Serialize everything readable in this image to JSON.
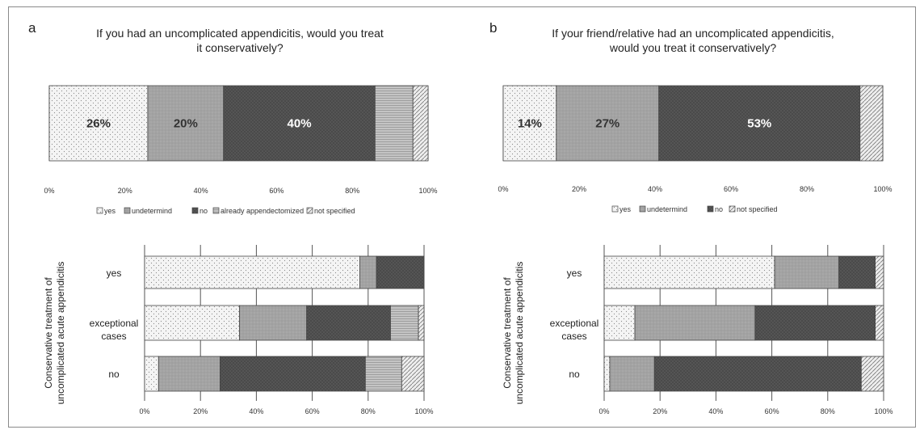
{
  "colors": {
    "yes_fill": "#f2f2f2",
    "undetermined_fill": "#a3a3a3",
    "no_fill": "#555555",
    "appendectomized_fill": "#bdbdbd",
    "not_specified_fill": "#e5e5e5",
    "border": "#444444",
    "frame": "#8a8a8a"
  },
  "chart_data": [
    {
      "panel": "a",
      "type": "bar",
      "orientation": "horizontal",
      "stacked": true,
      "title_lines": [
        "If you had an uncomplicated appendicitis, would you treat",
        "it conservatively?"
      ],
      "xlim": [
        0,
        100
      ],
      "x_ticks": [
        "0%",
        "20%",
        "40%",
        "60%",
        "80%",
        "100%"
      ],
      "legend_position": "bottom",
      "grid": true,
      "series": [
        {
          "name": "yes",
          "key": "yes",
          "values": [
            26
          ],
          "label": "26%"
        },
        {
          "name": "undetermind",
          "key": "undetermined",
          "values": [
            20
          ],
          "label": "20%"
        },
        {
          "name": "no",
          "key": "no",
          "values": [
            40
          ],
          "label": "40%"
        },
        {
          "name": "already appendectomized",
          "key": "appendectomized",
          "values": [
            10
          ],
          "label": ""
        },
        {
          "name": "not specified",
          "key": "not_specified",
          "values": [
            4
          ],
          "label": ""
        }
      ]
    },
    {
      "panel": "b",
      "type": "bar",
      "orientation": "horizontal",
      "stacked": true,
      "title_lines": [
        "If your friend/relative had an uncomplicated appendicitis,",
        "would you treat it conservatively?"
      ],
      "xlim": [
        0,
        100
      ],
      "x_ticks": [
        "0%",
        "20%",
        "40%",
        "60%",
        "80%",
        "100%"
      ],
      "legend_position": "bottom",
      "grid": true,
      "series": [
        {
          "name": "yes",
          "key": "yes",
          "values": [
            14
          ],
          "label": "14%"
        },
        {
          "name": "undetermind",
          "key": "undetermined",
          "values": [
            27
          ],
          "label": "27%"
        },
        {
          "name": "no",
          "key": "no",
          "values": [
            53
          ],
          "label": "53%"
        },
        {
          "name": "not specified",
          "key": "not_specified",
          "values": [
            6
          ],
          "label": ""
        }
      ]
    },
    {
      "panel": "a-bottom",
      "type": "bar",
      "orientation": "horizontal",
      "stacked": true,
      "ylabel_lines": [
        "Conservative treatment of",
        "uncomplicated acute appendicitis"
      ],
      "categories": [
        [
          "yes"
        ],
        [
          "exceptional",
          "cases"
        ],
        [
          "no"
        ]
      ],
      "xlim": [
        0,
        100
      ],
      "x_ticks": [
        "0%",
        "20%",
        "40%",
        "60%",
        "80%",
        "100%"
      ],
      "grid": true,
      "series": [
        {
          "key": "yes",
          "values": [
            77,
            34,
            5
          ]
        },
        {
          "key": "undetermined",
          "values": [
            6,
            24,
            22
          ]
        },
        {
          "key": "no",
          "values": [
            17,
            30,
            52
          ]
        },
        {
          "key": "appendectomized",
          "values": [
            0,
            10,
            13
          ]
        },
        {
          "key": "not_specified",
          "values": [
            0,
            2,
            8
          ]
        }
      ]
    },
    {
      "panel": "b-bottom",
      "type": "bar",
      "orientation": "horizontal",
      "stacked": true,
      "ylabel_lines": [
        "Conservative treatment of",
        "uncomplicated acute appendicitis"
      ],
      "categories": [
        [
          "yes"
        ],
        [
          "exceptional",
          "cases"
        ],
        [
          "no"
        ]
      ],
      "xlim": [
        0,
        100
      ],
      "x_ticks": [
        "0%",
        "20%",
        "40%",
        "60%",
        "80%",
        "100%"
      ],
      "grid": true,
      "series": [
        {
          "key": "yes",
          "values": [
            61,
            11,
            2
          ]
        },
        {
          "key": "undetermined",
          "values": [
            23,
            43,
            16
          ]
        },
        {
          "key": "no",
          "values": [
            13,
            43,
            74
          ]
        },
        {
          "key": "not_specified",
          "values": [
            3,
            3,
            8
          ]
        }
      ]
    }
  ]
}
